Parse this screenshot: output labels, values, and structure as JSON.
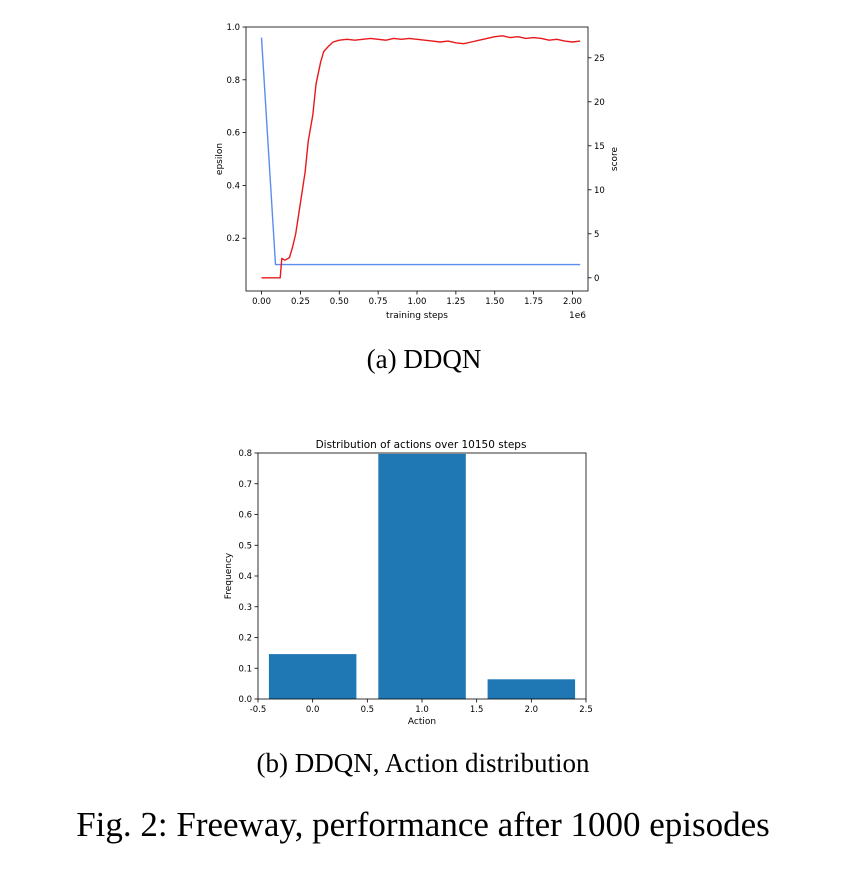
{
  "figure_caption": "Fig. 2: Freeway, performance after 1000 episodes",
  "colors": {
    "epsilon": "#5b8def",
    "score": "#e8191b",
    "bar": "#1f77b4"
  },
  "chart_data": [
    {
      "type": "line",
      "caption": "(a) DDQN",
      "xlabel": "training steps",
      "x_offset_label": "1e6",
      "ylabel_left": "epsilon",
      "ylabel_right": "score",
      "xlim": [
        -0.1,
        2.1
      ],
      "xticks": [
        0.0,
        0.25,
        0.5,
        0.75,
        1.0,
        1.25,
        1.5,
        1.75,
        2.0
      ],
      "xtick_labels": [
        "0.00",
        "0.25",
        "0.50",
        "0.75",
        "1.00",
        "1.25",
        "1.50",
        "1.75",
        "2.00"
      ],
      "ylim_left": [
        0.0,
        1.0
      ],
      "yticks_left": [
        0.2,
        0.4,
        0.6,
        0.8,
        1.0
      ],
      "ylim_right": [
        -1.5,
        28.5
      ],
      "yticks_right": [
        0,
        5,
        10,
        15,
        20,
        25
      ],
      "series": [
        {
          "axis": "left",
          "x": [
            0.0,
            0.09,
            2.05
          ],
          "y": [
            0.96,
            0.1,
            0.1
          ]
        },
        {
          "axis": "right",
          "x": [
            0.0,
            0.1,
            0.12,
            0.13,
            0.15,
            0.18,
            0.2,
            0.22,
            0.25,
            0.28,
            0.3,
            0.33,
            0.35,
            0.38,
            0.4,
            0.43,
            0.46,
            0.5,
            0.55,
            0.6,
            0.65,
            0.7,
            0.75,
            0.8,
            0.85,
            0.9,
            0.95,
            1.0,
            1.05,
            1.1,
            1.15,
            1.2,
            1.25,
            1.3,
            1.35,
            1.4,
            1.45,
            1.5,
            1.55,
            1.6,
            1.65,
            1.7,
            1.75,
            1.8,
            1.85,
            1.9,
            1.95,
            2.0,
            2.05
          ],
          "y": [
            0,
            0,
            0,
            2.2,
            2.0,
            2.3,
            3.5,
            5.0,
            8.5,
            12.0,
            15.5,
            18.5,
            22.0,
            24.5,
            25.7,
            26.3,
            26.8,
            27.0,
            27.1,
            27.0,
            27.1,
            27.2,
            27.1,
            27.0,
            27.2,
            27.1,
            27.2,
            27.1,
            27.0,
            26.9,
            26.8,
            26.9,
            26.7,
            26.6,
            26.8,
            27.0,
            27.2,
            27.4,
            27.5,
            27.3,
            27.4,
            27.2,
            27.3,
            27.2,
            27.0,
            27.1,
            26.9,
            26.8,
            26.9
          ]
        }
      ]
    },
    {
      "type": "bar",
      "caption": "(b) DDQN, Action distribution",
      "title": "Distribution of actions over 10150 steps",
      "xlabel": "Action",
      "ylabel": "Frequency",
      "categories": [
        0,
        1,
        2
      ],
      "values": [
        0.146,
        0.797,
        0.064
      ],
      "xlim": [
        -0.5,
        2.5
      ],
      "xticks": [
        -0.5,
        0.0,
        0.5,
        1.0,
        1.5,
        2.0,
        2.5
      ],
      "xtick_labels": [
        "-0.5",
        "0.0",
        "0.5",
        "1.0",
        "1.5",
        "2.0",
        "2.5"
      ],
      "ylim": [
        0.0,
        0.8
      ],
      "yticks": [
        0.0,
        0.1,
        0.2,
        0.3,
        0.4,
        0.5,
        0.6,
        0.7,
        0.8
      ],
      "ytick_labels": [
        "0.0",
        "0.1",
        "0.2",
        "0.3",
        "0.4",
        "0.5",
        "0.6",
        "0.7",
        "0.8"
      ],
      "bar_width": 0.8
    }
  ]
}
